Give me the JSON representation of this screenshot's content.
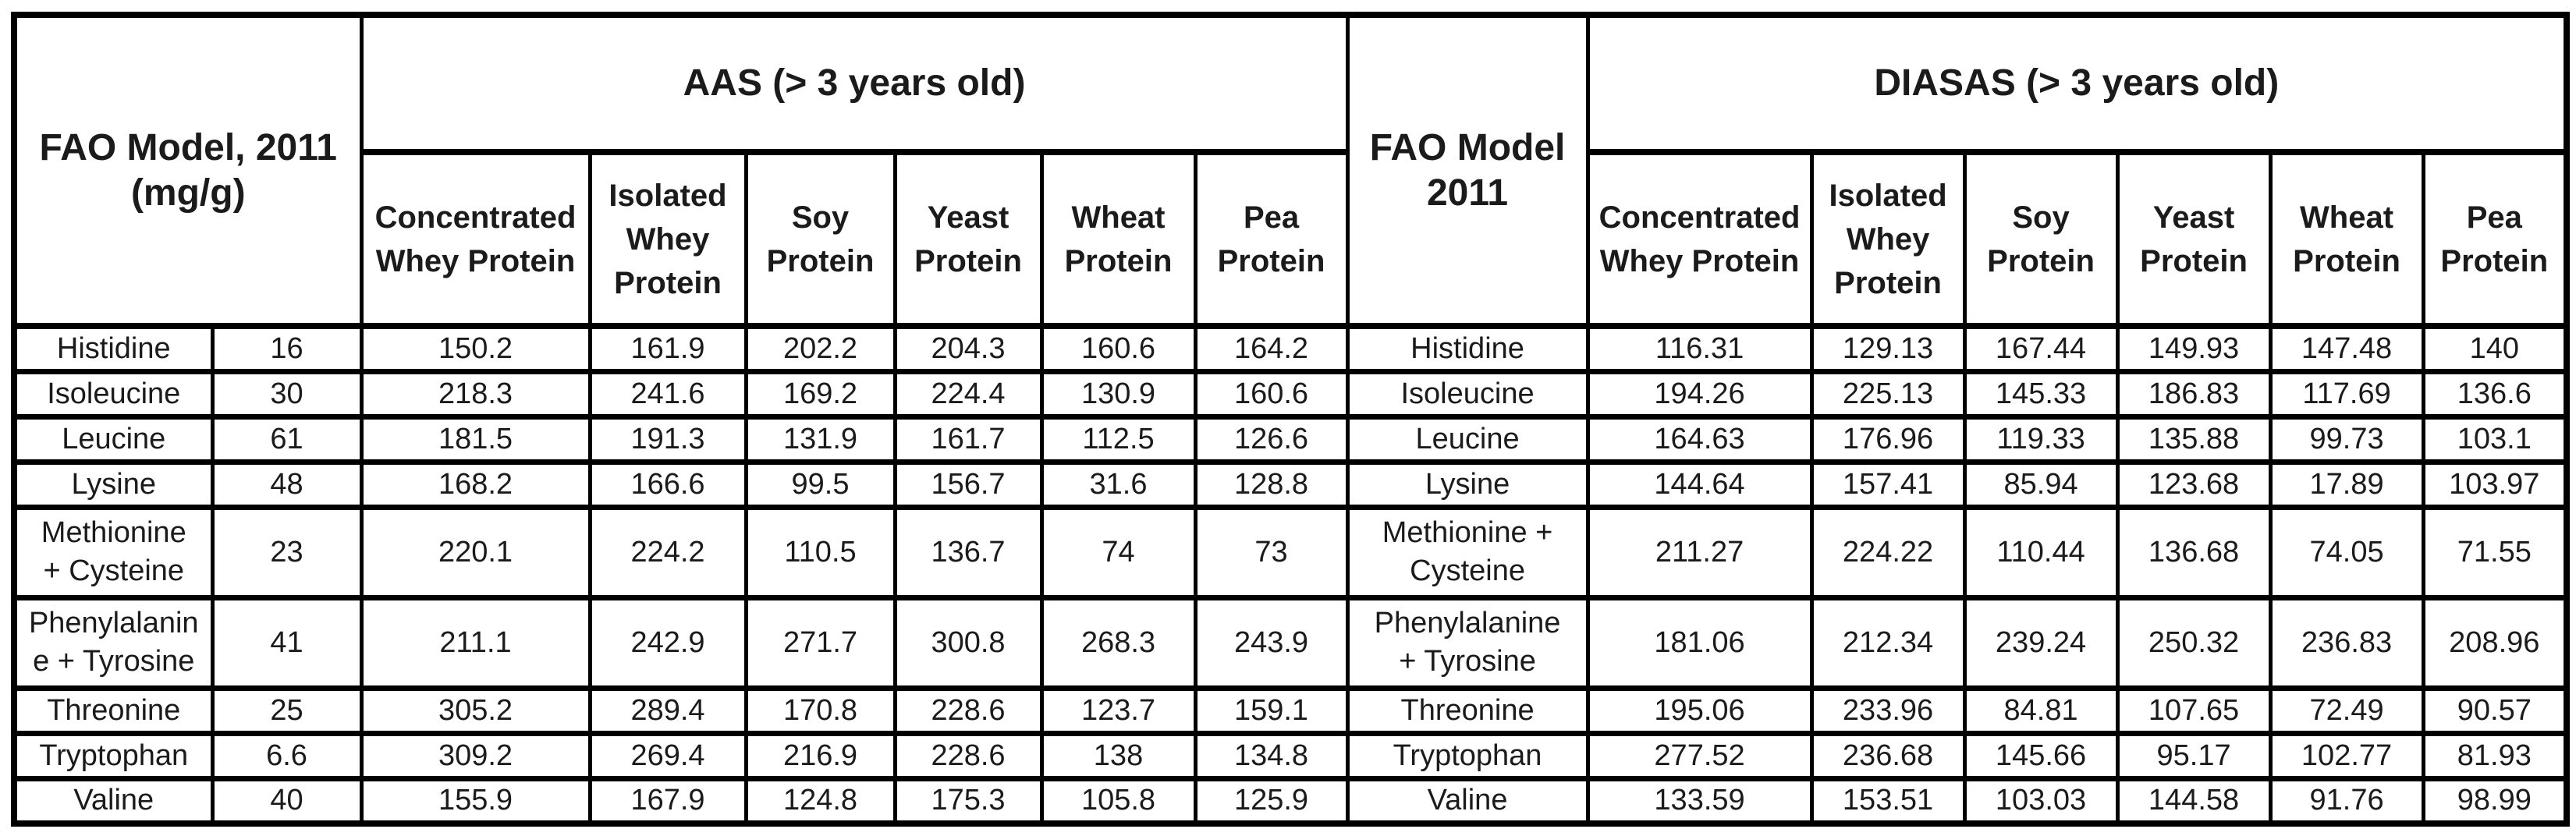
{
  "headers": {
    "fao_left": "FAO Model, 2011\n(mg/g)",
    "aas": "AAS (> 3 years old)",
    "fao_mid": "FAO Model\n2011",
    "diasas": "DIASAS (> 3 years old)",
    "proteins_left": [
      "Concentrated\nWhey Protein",
      "Isolated\nWhey\nProtein",
      "Soy\nProtein",
      "Yeast\nProtein",
      "Wheat\nProtein",
      "Pea\nProtein"
    ],
    "proteins_right": [
      "Concentrated\nWhey Protein",
      "Isolated\nWhey\nProtein",
      "Soy\nProtein",
      "Yeast\nProtein",
      "Wheat\nProtein",
      "Pea\nProtein"
    ]
  },
  "rows": [
    {
      "name_left": "Histidine",
      "fao": "16",
      "aas": [
        "150.2",
        "161.9",
        "202.2",
        "204.3",
        "160.6",
        "164.2"
      ],
      "name_right": "Histidine",
      "diasas": [
        "116.31",
        "129.13",
        "167.44",
        "149.93",
        "147.48",
        "140"
      ]
    },
    {
      "name_left": "Isoleucine",
      "fao": "30",
      "aas": [
        "218.3",
        "241.6",
        "169.2",
        "224.4",
        "130.9",
        "160.6"
      ],
      "name_right": "Isoleucine",
      "diasas": [
        "194.26",
        "225.13",
        "145.33",
        "186.83",
        "117.69",
        "136.6"
      ]
    },
    {
      "name_left": "Leucine",
      "fao": "61",
      "aas": [
        "181.5",
        "191.3",
        "131.9",
        "161.7",
        "112.5",
        "126.6"
      ],
      "name_right": "Leucine",
      "diasas": [
        "164.63",
        "176.96",
        "119.33",
        "135.88",
        "99.73",
        "103.1"
      ]
    },
    {
      "name_left": "Lysine",
      "fao": "48",
      "aas": [
        "168.2",
        "166.6",
        "99.5",
        "156.7",
        "31.6",
        "128.8"
      ],
      "name_right": "Lysine",
      "diasas": [
        "144.64",
        "157.41",
        "85.94",
        "123.68",
        "17.89",
        "103.97"
      ]
    },
    {
      "name_left": "Methionine\n+ Cysteine",
      "fao": "23",
      "aas": [
        "220.1",
        "224.2",
        "110.5",
        "136.7",
        "74",
        "73"
      ],
      "name_right": "Methionine +\nCysteine",
      "diasas": [
        "211.27",
        "224.22",
        "110.44",
        "136.68",
        "74.05",
        "71.55"
      ]
    },
    {
      "name_left": "Phenylalanin\ne + Tyrosine",
      "fao": "41",
      "aas": [
        "211.1",
        "242.9",
        "271.7",
        "300.8",
        "268.3",
        "243.9"
      ],
      "name_right": "Phenylalanine\n+ Tyrosine",
      "diasas": [
        "181.06",
        "212.34",
        "239.24",
        "250.32",
        "236.83",
        "208.96"
      ]
    },
    {
      "name_left": "Threonine",
      "fao": "25",
      "aas": [
        "305.2",
        "289.4",
        "170.8",
        "228.6",
        "123.7",
        "159.1"
      ],
      "name_right": "Threonine",
      "diasas": [
        "195.06",
        "233.96",
        "84.81",
        "107.65",
        "72.49",
        "90.57"
      ]
    },
    {
      "name_left": "Tryptophan",
      "fao": "6.6",
      "aas": [
        "309.2",
        "269.4",
        "216.9",
        "228.6",
        "138",
        "134.8"
      ],
      "name_right": "Tryptophan",
      "diasas": [
        "277.52",
        "236.68",
        "145.66",
        "95.17",
        "102.77",
        "81.93"
      ]
    },
    {
      "name_left": "Valine",
      "fao": "40",
      "aas": [
        "155.9",
        "167.9",
        "124.8",
        "175.3",
        "105.8",
        "125.9"
      ],
      "name_right": "Valine",
      "diasas": [
        "133.59",
        "153.51",
        "103.03",
        "144.58",
        "91.76",
        "98.99"
      ]
    }
  ],
  "chart_data": [
    {
      "type": "table",
      "title": "AAS (> 3 years old)",
      "row_header_label": "FAO Model, 2011 (mg/g)",
      "categories": [
        "Histidine",
        "Isoleucine",
        "Leucine",
        "Lysine",
        "Methionine + Cysteine",
        "Phenylalanine + Tyrosine",
        "Threonine",
        "Tryptophan",
        "Valine"
      ],
      "fao_model_2011_mg_g": [
        16,
        30,
        61,
        48,
        23,
        41,
        25,
        6.6,
        40
      ],
      "series": [
        {
          "name": "Concentrated Whey Protein",
          "values": [
            150.2,
            218.3,
            181.5,
            168.2,
            220.1,
            211.1,
            305.2,
            309.2,
            155.9
          ]
        },
        {
          "name": "Isolated Whey Protein",
          "values": [
            161.9,
            241.6,
            191.3,
            166.6,
            224.2,
            242.9,
            289.4,
            269.4,
            167.9
          ]
        },
        {
          "name": "Soy Protein",
          "values": [
            202.2,
            169.2,
            131.9,
            99.5,
            110.5,
            271.7,
            170.8,
            216.9,
            124.8
          ]
        },
        {
          "name": "Yeast Protein",
          "values": [
            204.3,
            224.4,
            161.7,
            156.7,
            136.7,
            300.8,
            228.6,
            228.6,
            175.3
          ]
        },
        {
          "name": "Wheat Protein",
          "values": [
            160.6,
            130.9,
            112.5,
            31.6,
            74,
            268.3,
            123.7,
            138,
            105.8
          ]
        },
        {
          "name": "Pea Protein",
          "values": [
            164.2,
            160.6,
            126.6,
            128.8,
            73,
            243.9,
            159.1,
            134.8,
            125.9
          ]
        }
      ]
    },
    {
      "type": "table",
      "title": "DIASAS (> 3 years old)",
      "row_header_label": "FAO Model 2011",
      "categories": [
        "Histidine",
        "Isoleucine",
        "Leucine",
        "Lysine",
        "Methionine + Cysteine",
        "Phenylalanine + Tyrosine",
        "Threonine",
        "Tryptophan",
        "Valine"
      ],
      "series": [
        {
          "name": "Concentrated Whey Protein",
          "values": [
            116.31,
            194.26,
            164.63,
            144.64,
            211.27,
            181.06,
            195.06,
            277.52,
            133.59
          ]
        },
        {
          "name": "Isolated Whey Protein",
          "values": [
            129.13,
            225.13,
            176.96,
            157.41,
            224.22,
            212.34,
            233.96,
            236.68,
            153.51
          ]
        },
        {
          "name": "Soy Protein",
          "values": [
            167.44,
            145.33,
            119.33,
            85.94,
            110.44,
            239.24,
            84.81,
            145.66,
            103.03
          ]
        },
        {
          "name": "Yeast Protein",
          "values": [
            149.93,
            186.83,
            135.88,
            123.68,
            136.68,
            250.32,
            107.65,
            95.17,
            144.58
          ]
        },
        {
          "name": "Wheat Protein",
          "values": [
            147.48,
            117.69,
            99.73,
            17.89,
            74.05,
            236.83,
            72.49,
            102.77,
            91.76
          ]
        },
        {
          "name": "Pea Protein",
          "values": [
            140,
            136.6,
            103.1,
            103.97,
            71.55,
            208.96,
            90.57,
            81.93,
            98.99
          ]
        }
      ]
    }
  ]
}
